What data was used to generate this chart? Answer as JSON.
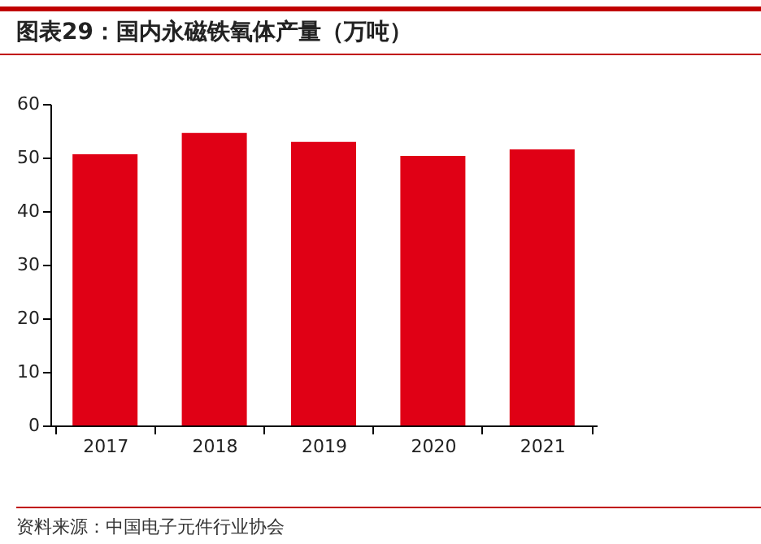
{
  "chart_data": {
    "type": "bar",
    "title": "图表29：国内永磁铁氧体产量（万吨）",
    "categories": [
      "2017",
      "2018",
      "2019",
      "2020",
      "2021"
    ],
    "values": [
      50.6,
      54.6,
      52.9,
      50.3,
      51.5
    ],
    "color": "#e00015",
    "ylim": [
      0,
      60
    ],
    "yticks": [
      0,
      10,
      20,
      30,
      40,
      50,
      60
    ],
    "grid": false,
    "annotations": [
      "资料来源：中国电子元件行业协会"
    ]
  }
}
